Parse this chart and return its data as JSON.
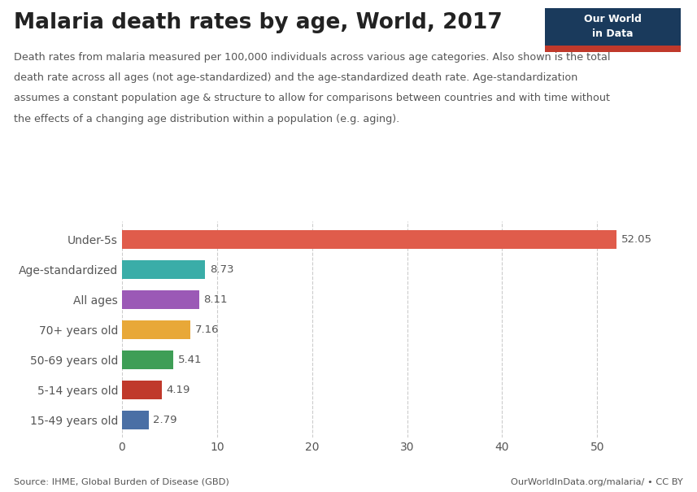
{
  "title": "Malaria death rates by age, World, 2017",
  "subtitle_lines": [
    "Death rates from malaria measured per 100,000 individuals across various age categories. Also shown is the total",
    "death rate across all ages (not age-standardized) and the age-standardized death rate. Age-standardization",
    "assumes a constant population age & structure to allow for comparisons between countries and with time without",
    "the effects of a changing age distribution within a population (e.g. aging)."
  ],
  "categories": [
    "Under-5s",
    "Age-standardized",
    "All ages",
    "70+ years old",
    "50-69 years old",
    "5-14 years old",
    "15-49 years old"
  ],
  "values": [
    52.05,
    8.73,
    8.11,
    7.16,
    5.41,
    4.19,
    2.79
  ],
  "colors": [
    "#E05C4B",
    "#3AADA8",
    "#9B59B6",
    "#E8A838",
    "#3E9E56",
    "#C0392B",
    "#4A6FA5"
  ],
  "xlim": [
    0,
    55
  ],
  "xticks": [
    0,
    10,
    20,
    30,
    40,
    50
  ],
  "source_left": "Source: IHME, Global Burden of Disease (GBD)",
  "source_right": "OurWorldInData.org/malaria/ • CC BY",
  "bg_color": "#FFFFFF",
  "grid_color": "#CCCCCC",
  "title_fontsize": 19,
  "subtitle_fontsize": 9.2,
  "label_fontsize": 10,
  "value_fontsize": 9.5,
  "owid_box_color": "#1a3a5c",
  "owid_red_color": "#C0392B",
  "owid_text": "Our World\nin Data"
}
